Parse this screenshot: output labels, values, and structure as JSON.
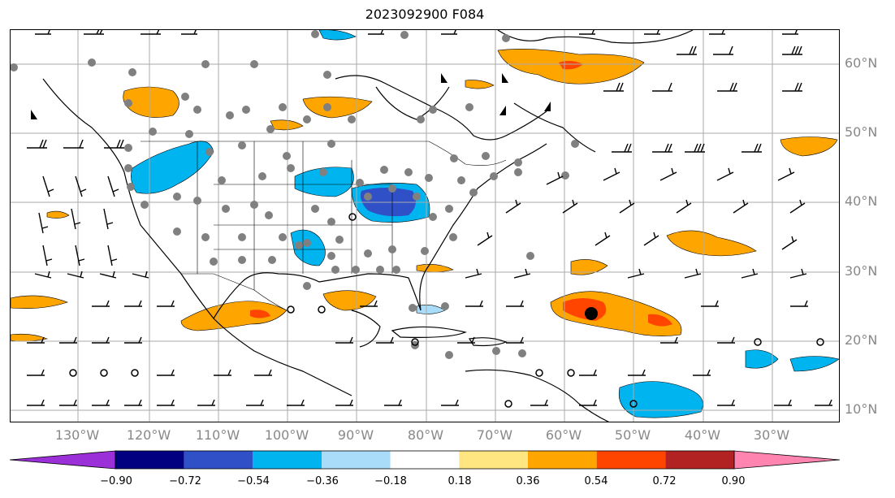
{
  "title": "2023092900 F084",
  "map": {
    "projection": "lat-lon",
    "latitude_labels": [
      "60°N",
      "50°N",
      "40°N",
      "30°N",
      "20°N",
      "10°N"
    ],
    "longitude_labels": [
      "130°W",
      "120°W",
      "110°W",
      "100°W",
      "90°W",
      "80°W",
      "70°W",
      "60°W",
      "50°W",
      "40°W",
      "30°W"
    ],
    "grid": true,
    "features": [
      "coastlines",
      "country-borders",
      "state-borders",
      "wind-barbs",
      "station-dots",
      "filled-contours"
    ]
  },
  "colorbar": {
    "tick_labels": [
      "−0.90",
      "−0.72",
      "−0.54",
      "−0.36",
      "−0.18",
      "0.18",
      "0.36",
      "0.54",
      "0.72",
      "0.90"
    ],
    "colors": [
      "#9b30d9",
      "#000080",
      "#3050c8",
      "#00b4f0",
      "#a8dcf8",
      "#ffffff",
      "#ffe680",
      "#ffa500",
      "#ff4500",
      "#b22222",
      "#ff85b0"
    ],
    "extend": "both"
  }
}
